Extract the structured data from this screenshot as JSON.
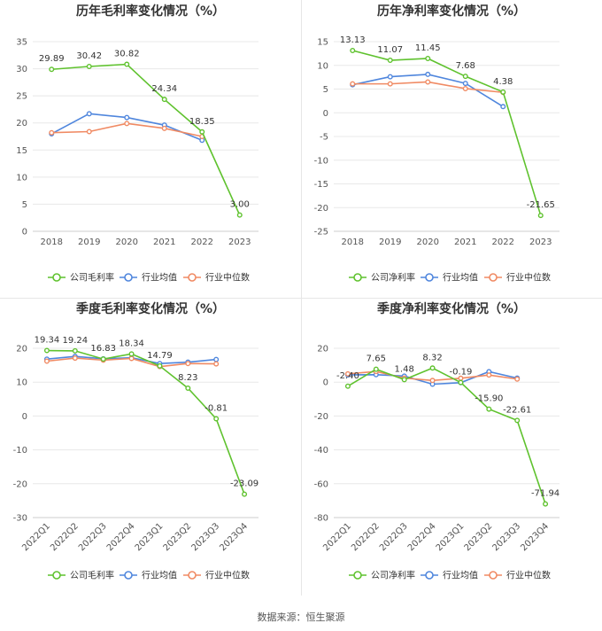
{
  "colors": {
    "company": "#5fc22e",
    "industry_avg": "#4f86dd",
    "industry_median": "#f08a63"
  },
  "source_text": "数据来源：恒生聚源",
  "chart_data": [
    {
      "type": "line",
      "title": "历年毛利率变化情况（%）",
      "categories": [
        "2018",
        "2019",
        "2020",
        "2021",
        "2022",
        "2023"
      ],
      "ylim": [
        0,
        35
      ],
      "yticks": [
        0,
        5,
        10,
        15,
        20,
        25,
        30,
        35
      ],
      "series": [
        {
          "name": "公司毛利率",
          "color": "#5fc22e",
          "values": [
            29.89,
            30.42,
            30.82,
            24.34,
            18.35,
            3.0
          ],
          "labels": [
            "29.89",
            "30.42",
            "30.82",
            "24.34",
            "18.35",
            "3.00"
          ]
        },
        {
          "name": "行业均值",
          "color": "#4f86dd",
          "values": [
            18.0,
            21.7,
            21.0,
            19.6,
            16.8,
            null
          ]
        },
        {
          "name": "行业中位数",
          "color": "#f08a63",
          "values": [
            18.2,
            18.4,
            19.9,
            19.0,
            17.5,
            null
          ]
        }
      ]
    },
    {
      "type": "line",
      "title": "历年净利率变化情况（%）",
      "categories": [
        "2018",
        "2019",
        "2020",
        "2021",
        "2022",
        "2023"
      ],
      "ylim": [
        -25,
        15
      ],
      "yticks": [
        -25,
        -20,
        -15,
        -10,
        -5,
        0,
        5,
        10,
        15
      ],
      "series": [
        {
          "name": "公司净利率",
          "color": "#5fc22e",
          "values": [
            13.13,
            11.07,
            11.45,
            7.68,
            4.38,
            -21.65
          ],
          "labels": [
            "13.13",
            "11.07",
            "11.45",
            "7.68",
            "4.38",
            "-21.65"
          ]
        },
        {
          "name": "行业均值",
          "color": "#4f86dd",
          "values": [
            5.9,
            7.6,
            8.1,
            6.2,
            1.3,
            null
          ]
        },
        {
          "name": "行业中位数",
          "color": "#f08a63",
          "values": [
            6.1,
            6.1,
            6.5,
            5.1,
            4.3,
            null
          ]
        }
      ]
    },
    {
      "type": "line",
      "title": "季度毛利率变化情况（%）",
      "categories": [
        "2022Q1",
        "2022Q2",
        "2022Q3",
        "2022Q4",
        "2023Q1",
        "2023Q2",
        "2023Q3",
        "2023Q4"
      ],
      "ylim": [
        -30,
        20
      ],
      "yticks": [
        -30,
        -20,
        -10,
        0,
        10,
        20
      ],
      "series": [
        {
          "name": "公司毛利率",
          "color": "#5fc22e",
          "values": [
            19.34,
            19.24,
            16.83,
            18.34,
            14.79,
            8.23,
            -0.81,
            -23.09
          ],
          "labels": [
            "19.34",
            "19.24",
            "16.83",
            "18.34",
            "14.79",
            "8.23",
            "-0.81",
            "-23.09"
          ]
        },
        {
          "name": "行业均值",
          "color": "#4f86dd",
          "values": [
            16.8,
            17.6,
            16.9,
            17.2,
            15.5,
            15.9,
            16.7,
            null
          ]
        },
        {
          "name": "行业中位数",
          "color": "#f08a63",
          "values": [
            16.2,
            17.1,
            16.5,
            17.0,
            14.6,
            15.5,
            15.4,
            null
          ]
        }
      ]
    },
    {
      "type": "line",
      "title": "季度净利率变化情况（%）",
      "categories": [
        "2022Q1",
        "2022Q2",
        "2022Q3",
        "2022Q4",
        "2023Q1",
        "2023Q2",
        "2023Q3",
        "2023Q4"
      ],
      "ylim": [
        -80,
        20
      ],
      "yticks": [
        -80,
        -60,
        -40,
        -20,
        0,
        20
      ],
      "series": [
        {
          "name": "公司净利率",
          "color": "#5fc22e",
          "values": [
            -2.4,
            7.65,
            1.48,
            8.32,
            -0.19,
            -15.9,
            -22.61,
            -71.94
          ],
          "labels": [
            "-2.40",
            "7.65",
            "1.48",
            "8.32",
            "-0.19",
            "-15.90",
            "-22.61",
            "-71.94"
          ]
        },
        {
          "name": "行业均值",
          "color": "#4f86dd",
          "values": [
            4.3,
            4.4,
            3.6,
            -1.2,
            -0.3,
            6.2,
            2.4,
            null
          ]
        },
        {
          "name": "行业中位数",
          "color": "#f08a63",
          "values": [
            4.9,
            6.3,
            2.4,
            1.0,
            2.3,
            4.2,
            1.8,
            null
          ]
        }
      ]
    }
  ]
}
